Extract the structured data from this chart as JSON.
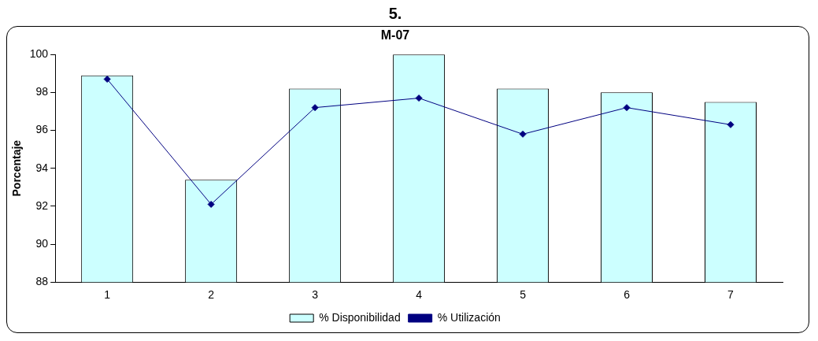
{
  "chart_data": {
    "type": "bar",
    "title": "5.",
    "subtitle": "M-07",
    "ylabel": "Porcentaje",
    "categories": [
      "1",
      "2",
      "3",
      "4",
      "5",
      "6",
      "7"
    ],
    "series": [
      {
        "name": "% Disponibilidad",
        "color": "#ccffff",
        "values": [
          98.9,
          93.4,
          98.2,
          100,
          98.2,
          98.0,
          97.5
        ]
      },
      {
        "name": "% Utilización",
        "type": "line",
        "color": "#000080",
        "values": [
          98.7,
          92.1,
          97.2,
          97.7,
          95.8,
          97.2,
          96.3
        ]
      }
    ],
    "ylim": [
      88,
      100
    ],
    "yticks": [
      88,
      90,
      92,
      94,
      96,
      98,
      100
    ],
    "grid": false,
    "legend": "bottom",
    "marker": "diamond",
    "line_style": "solid"
  }
}
